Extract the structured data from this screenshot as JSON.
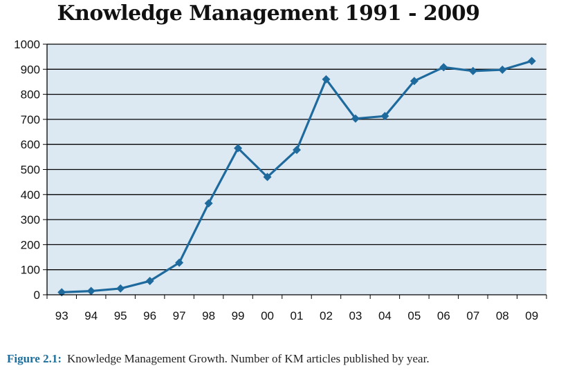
{
  "chart_data": {
    "type": "line",
    "title": "Knowledge Management 1991 - 2009",
    "categories": [
      "93",
      "94",
      "95",
      "96",
      "97",
      "98",
      "99",
      "00",
      "01",
      "02",
      "03",
      "04",
      "05",
      "06",
      "07",
      "08",
      "09"
    ],
    "series": [
      {
        "name": "Number of KM articles published",
        "values": [
          10,
          15,
          25,
          55,
          128,
          365,
          585,
          470,
          578,
          860,
          703,
          713,
          853,
          908,
          893,
          898,
          933
        ]
      }
    ],
    "ylim": [
      0,
      1000
    ],
    "yticks": [
      0,
      100,
      200,
      300,
      400,
      500,
      600,
      700,
      800,
      900,
      1000
    ],
    "xlabel": "",
    "ylabel": "",
    "grid": true,
    "colors": {
      "line": "#1f6a9d",
      "plot_bg": "#dce9f3",
      "grid": "#000000"
    }
  },
  "caption": {
    "label": "Figure 2.1:",
    "text": "Knowledge Management Growth. Number of KM articles published by year."
  }
}
